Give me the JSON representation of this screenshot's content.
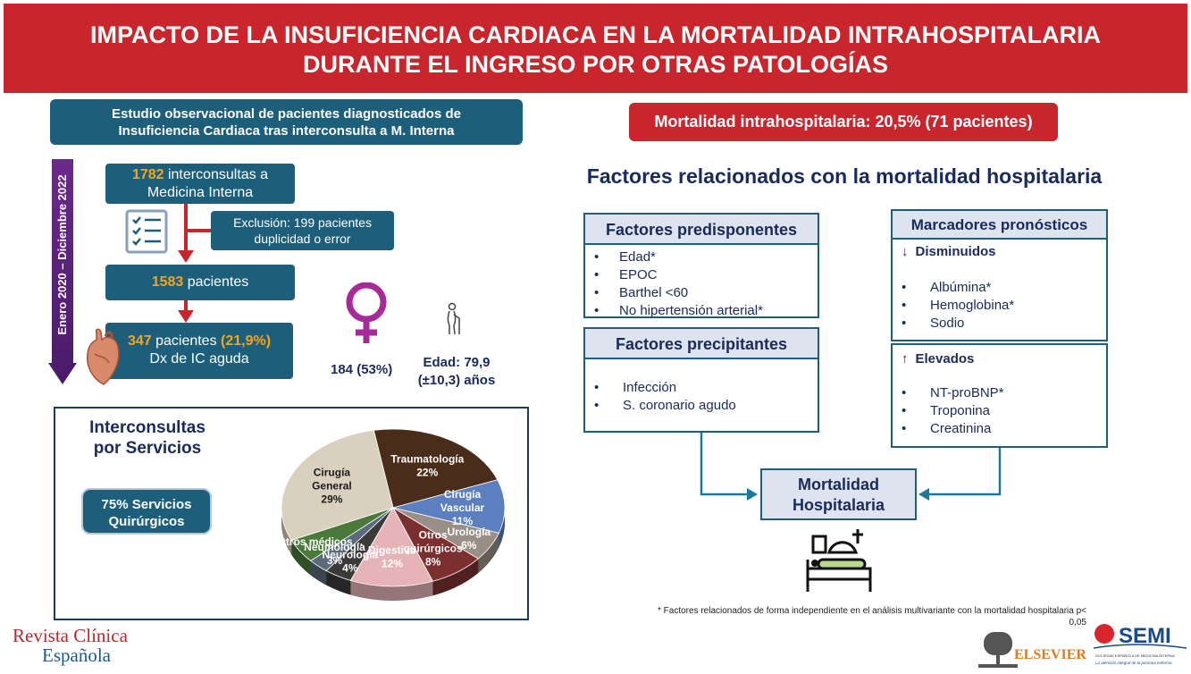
{
  "header": {
    "line1": "IMPACTO DE LA INSUFICIENCIA CARDIACA EN LA MORTALIDAD INTRAHOSPITALARIA",
    "line2": "DURANTE EL INGRESO POR OTRAS PATOLOGÍAS"
  },
  "study": {
    "line1": "Estudio observacional de pacientes diagnosticados de",
    "line2": "Insuficiencia Cardiaca tras interconsulta a M. Interna"
  },
  "timeline": {
    "label": "Enero 2020 – Diciembre 2022"
  },
  "flow": {
    "box1_number": "1782",
    "box1_text": " interconsultas a",
    "box1_line2": "Medicina Interna",
    "exclusion_line1": "Exclusión: 199 pacientes",
    "exclusion_line2": "duplicidad o error",
    "box2_number": "1583",
    "box2_text": " pacientes",
    "box3_number": "347",
    "box3_text": " pacientes ",
    "box3_pct": "(21,9%)",
    "box3_line2": "Dx de IC aguda"
  },
  "demographics": {
    "female": "184 (53%)",
    "age_line1": "Edad: 79,9",
    "age_line2": "(±10,3) años"
  },
  "interconsultas": {
    "title_line1": "Interconsultas",
    "title_line2": "por Servicios",
    "surgical_line1": "75% Servicios",
    "surgical_line2": "Quirúrgicos"
  },
  "chart_data": {
    "type": "pie",
    "title": "",
    "slices": [
      {
        "label": "Traumatología",
        "value": 22,
        "color": "#4a2c1a"
      },
      {
        "label": "Cirugía Vascular",
        "value": 11,
        "color": "#5b7fbf"
      },
      {
        "label": "Urología",
        "value": 6,
        "color": "#9a8f86"
      },
      {
        "label": "Otros quirúrgicos",
        "value": 8,
        "color": "#7b2f2f"
      },
      {
        "label": "Digestivo",
        "value": 12,
        "color": "#e6b4b8"
      },
      {
        "label": "Neurología",
        "value": 4,
        "color": "#3a3a3a"
      },
      {
        "label": "Neumología",
        "value": 3,
        "color": "#5a6a7a"
      },
      {
        "label": "Otros médicos…",
        "value": 5,
        "color": "#4a7a3a"
      },
      {
        "label": "Cirugía General",
        "value": 29,
        "color": "#d9d1bd"
      }
    ],
    "data_labels": [
      {
        "line1": "Traumatología",
        "line2": "22%"
      },
      {
        "line1": "Cirugía",
        "line2": "Vascular",
        "line3": "11%"
      },
      {
        "line1": "Urología",
        "line2": "6%"
      },
      {
        "line1": "Otros",
        "line2": "quirúrgicos",
        "line3": "8%"
      },
      {
        "line1": "Digestivo",
        "line2": "12%"
      },
      {
        "line1": "Neurología",
        "line2": "4%"
      },
      {
        "line1": "Neumología",
        "line2": "3%"
      },
      {
        "line1": "Otros médicos…"
      },
      {
        "line1": "Cirugía",
        "line2": "General",
        "line3": "29%"
      }
    ]
  },
  "mortality": {
    "banner": "Mortalidad intrahospitalaria: 20,5% (71 pacientes)"
  },
  "factors_title": "Factores relacionados con la mortalidad hospitalaria",
  "predisponentes": {
    "title": "Factores predisponentes",
    "items": [
      "Edad*",
      "EPOC",
      "Barthel <60",
      "No hipertensión arterial*"
    ]
  },
  "precipitantes": {
    "title": "Factores precipitantes",
    "items": [
      "Infección",
      "S. coronario agudo"
    ]
  },
  "pronosticos": {
    "title": "Marcadores pronósticos",
    "decreased_arrow": "↓",
    "decreased": "Disminuidos",
    "decreased_items": [
      "Albúmina*",
      "Hemoglobina*",
      "Sodio"
    ],
    "increased_arrow": "↑",
    "increased": "Elevados",
    "increased_items": [
      "NT-proBNP*",
      "Troponina",
      "Creatinina"
    ]
  },
  "outcome": {
    "line1": "Mortalidad",
    "line2": "Hospitalaria"
  },
  "footnote": {
    "line1": "* Factores relacionados de forma independiente en el análisis multivariante con la mortalidad hospitalaria p<",
    "line2": "0,05"
  },
  "journal": {
    "line1": "Revista Clínica",
    "line2": "Española"
  },
  "logos": {
    "elsevier": "ELSEVIER",
    "semi": "SEMI",
    "semi_sub1": "SOCIEDAD ESPAÑOLA DE MEDICINA INTERNA",
    "semi_sub2": "La atención integral de la persona enferma"
  },
  "icons": [
    "checklist-icon",
    "heart-icon",
    "female-icon",
    "elderly-person-icon",
    "hospital-bed-icon"
  ],
  "colors": {
    "header_red": "#c8262c",
    "teal": "#1d5f7a",
    "accent_orange": "#f4a51c",
    "navy_text": "#1a2a5a"
  }
}
